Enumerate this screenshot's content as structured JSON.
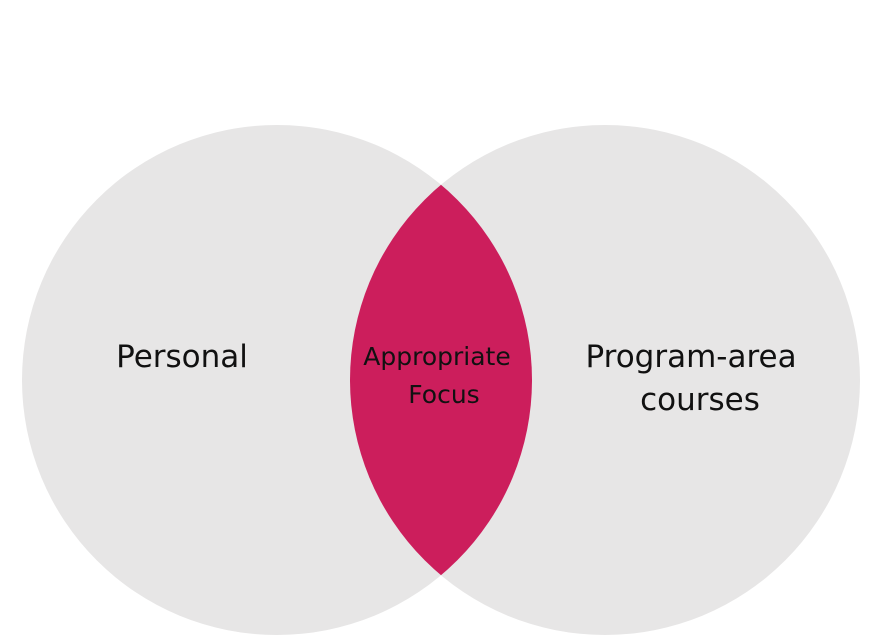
{
  "diagram": {
    "type": "venn",
    "colors": {
      "circle_fill": "#e7e6e6",
      "intersection_fill": "#cc1e5c",
      "text": "#111111"
    },
    "sets": {
      "left": {
        "label_lines": [
          "Personal"
        ]
      },
      "right": {
        "label_lines": [
          "Program-area",
          "courses"
        ]
      },
      "intersection": {
        "label_lines": [
          "Appropriate",
          "Focus"
        ]
      }
    }
  }
}
